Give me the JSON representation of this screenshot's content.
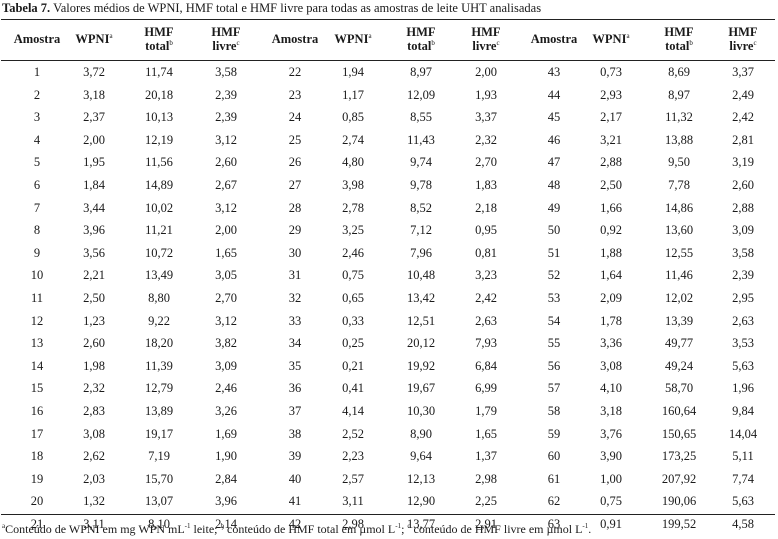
{
  "caption": {
    "label": "Tabela 7.",
    "text": "Valores médios de WPNI, HMF total e HMF livre para todas as amostras de leite UHT analisadas"
  },
  "headers": {
    "amostra": "Amostra",
    "wpni": "WPNI",
    "wpni_sup": "a",
    "hmf_total_1": "HMF",
    "hmf_total_2": "total",
    "hmf_total_sup": "b",
    "hmf_livre_1": "HMF",
    "hmf_livre_2": "livre",
    "hmf_livre_sup": "c"
  },
  "rows": [
    [
      "1",
      "3,72",
      "11,74",
      "3,58",
      "22",
      "1,94",
      "8,97",
      "2,00",
      "43",
      "0,73",
      "8,69",
      "3,37"
    ],
    [
      "2",
      "3,18",
      "20,18",
      "2,39",
      "23",
      "1,17",
      "12,09",
      "1,93",
      "44",
      "2,93",
      "8,97",
      "2,49"
    ],
    [
      "3",
      "2,37",
      "10,13",
      "2,39",
      "24",
      "0,85",
      "8,55",
      "3,37",
      "45",
      "2,17",
      "11,32",
      "2,42"
    ],
    [
      "4",
      "2,00",
      "12,19",
      "3,12",
      "25",
      "2,74",
      "11,43",
      "2,32",
      "46",
      "3,21",
      "13,88",
      "2,81"
    ],
    [
      "5",
      "1,95",
      "11,56",
      "2,60",
      "26",
      "4,80",
      "9,74",
      "2,70",
      "47",
      "2,88",
      "9,50",
      "3,19"
    ],
    [
      "6",
      "1,84",
      "14,89",
      "2,67",
      "27",
      "3,98",
      "9,78",
      "1,83",
      "48",
      "2,50",
      "7,78",
      "2,60"
    ],
    [
      "7",
      "3,44",
      "10,02",
      "3,12",
      "28",
      "2,78",
      "8,52",
      "2,18",
      "49",
      "1,66",
      "14,86",
      "2,88"
    ],
    [
      "8",
      "3,96",
      "11,21",
      "2,00",
      "29",
      "3,25",
      "7,12",
      "0,95",
      "50",
      "0,92",
      "13,60",
      "3,09"
    ],
    [
      "9",
      "3,56",
      "10,72",
      "1,65",
      "30",
      "2,46",
      "7,96",
      "0,81",
      "51",
      "1,88",
      "12,55",
      "3,58"
    ],
    [
      "10",
      "2,21",
      "13,49",
      "3,05",
      "31",
      "0,75",
      "10,48",
      "3,23",
      "52",
      "1,64",
      "11,46",
      "2,39"
    ],
    [
      "11",
      "2,50",
      "8,80",
      "2,70",
      "32",
      "0,65",
      "13,42",
      "2,42",
      "53",
      "2,09",
      "12,02",
      "2,95"
    ],
    [
      "12",
      "1,23",
      "9,22",
      "3,12",
      "33",
      "0,33",
      "12,51",
      "2,63",
      "54",
      "1,78",
      "13,39",
      "2,63"
    ],
    [
      "13",
      "2,60",
      "18,20",
      "3,82",
      "34",
      "0,25",
      "20,12",
      "7,93",
      "55",
      "3,36",
      "49,77",
      "3,53"
    ],
    [
      "14",
      "1,98",
      "11,39",
      "3,09",
      "35",
      "0,21",
      "19,92",
      "6,84",
      "56",
      "3,08",
      "49,24",
      "5,63"
    ],
    [
      "15",
      "2,32",
      "12,79",
      "2,46",
      "36",
      "0,41",
      "19,67",
      "6,99",
      "57",
      "4,10",
      "58,70",
      "1,96"
    ],
    [
      "16",
      "2,83",
      "13,89",
      "3,26",
      "37",
      "4,14",
      "10,30",
      "1,79",
      "58",
      "3,18",
      "160,64",
      "9,84"
    ],
    [
      "17",
      "3,08",
      "19,17",
      "1,69",
      "38",
      "2,52",
      "8,90",
      "1,65",
      "59",
      "3,76",
      "150,65",
      "14,04"
    ],
    [
      "18",
      "2,62",
      "7,19",
      "1,90",
      "39",
      "2,23",
      "9,64",
      "1,37",
      "60",
      "3,90",
      "173,25",
      "5,11"
    ],
    [
      "19",
      "2,03",
      "15,70",
      "2,84",
      "40",
      "2,57",
      "12,13",
      "2,98",
      "61",
      "1,00",
      "207,92",
      "7,74"
    ],
    [
      "20",
      "1,32",
      "13,07",
      "3,96",
      "41",
      "3,11",
      "12,90",
      "2,25",
      "62",
      "0,75",
      "190,06",
      "5,63"
    ],
    [
      "21",
      "3,11",
      "8,10",
      "2,14",
      "42",
      "2,98",
      "13,77",
      "2,91",
      "63",
      "0,91",
      "199,52",
      "4,58"
    ]
  ],
  "footnote": {
    "a_sup": "a",
    "a_text": "Conteúdo de WPNI em mg WPN mL",
    "a_exp": "-1",
    "a_tail": " leite; ",
    "b_sup": "b",
    "b_text": " conteúdo de HMF total em µmol L",
    "b_exp": "-1",
    "b_tail": "; ",
    "c_sup": "c",
    "c_text": " conteúdo de HMF livre em µmol L",
    "c_exp": "-1",
    "c_tail": "."
  }
}
